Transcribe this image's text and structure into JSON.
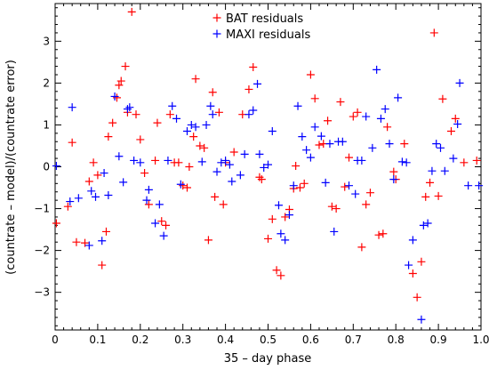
{
  "chart_data": {
    "type": "scatter",
    "title": "",
    "xlabel": "35 – day phase",
    "ylabel": "(countrate – model)/(countrate error)",
    "xlim": [
      0,
      1.0
    ],
    "ylim": [
      -3.9,
      3.9
    ],
    "xticks": [
      0,
      0.1,
      0.2,
      0.3,
      0.4,
      0.5,
      0.6,
      0.7,
      0.8,
      0.9,
      1.0
    ],
    "xtick_labels": [
      "0",
      "0.1",
      "0.2",
      "0.3",
      "0.4",
      "0.5",
      "0.6",
      "0.7",
      "0.8",
      "0.9",
      "1.0"
    ],
    "yticks": [
      -3,
      -2,
      -1,
      0,
      1,
      2,
      3
    ],
    "ytick_labels": [
      "−3",
      "−2",
      "−1",
      "0",
      "1",
      "2",
      "3"
    ],
    "legend_position": "top-right",
    "marker": "plus",
    "series": [
      {
        "name": "BAT residuals",
        "color": "#ff0000",
        "points": [
          [
            0.003,
            -1.35
          ],
          [
            0.03,
            -0.95
          ],
          [
            0.04,
            0.58
          ],
          [
            0.05,
            -1.8
          ],
          [
            0.07,
            -1.82
          ],
          [
            0.08,
            -0.35
          ],
          [
            0.09,
            0.1
          ],
          [
            0.1,
            -0.2
          ],
          [
            0.11,
            -2.35
          ],
          [
            0.12,
            -1.55
          ],
          [
            0.125,
            0.72
          ],
          [
            0.135,
            1.05
          ],
          [
            0.145,
            1.65
          ],
          [
            0.15,
            1.95
          ],
          [
            0.155,
            2.05
          ],
          [
            0.165,
            2.4
          ],
          [
            0.17,
            1.3
          ],
          [
            0.18,
            3.7
          ],
          [
            0.19,
            1.25
          ],
          [
            0.2,
            0.65
          ],
          [
            0.21,
            -0.15
          ],
          [
            0.22,
            -0.9
          ],
          [
            0.235,
            0.15
          ],
          [
            0.24,
            1.05
          ],
          [
            0.25,
            -1.3
          ],
          [
            0.26,
            -1.4
          ],
          [
            0.27,
            1.25
          ],
          [
            0.28,
            0.1
          ],
          [
            0.29,
            0.1
          ],
          [
            0.3,
            -0.45
          ],
          [
            0.31,
            -0.5
          ],
          [
            0.315,
            0.0
          ],
          [
            0.325,
            0.72
          ],
          [
            0.33,
            2.1
          ],
          [
            0.34,
            0.5
          ],
          [
            0.35,
            0.45
          ],
          [
            0.36,
            -1.75
          ],
          [
            0.37,
            1.78
          ],
          [
            0.375,
            -0.72
          ],
          [
            0.385,
            1.3
          ],
          [
            0.395,
            -0.9
          ],
          [
            0.4,
            0.1
          ],
          [
            0.42,
            0.35
          ],
          [
            0.44,
            1.25
          ],
          [
            0.455,
            1.85
          ],
          [
            0.465,
            2.38
          ],
          [
            0.48,
            -0.25
          ],
          [
            0.485,
            -0.3
          ],
          [
            0.5,
            -1.72
          ],
          [
            0.51,
            -1.25
          ],
          [
            0.52,
            -2.47
          ],
          [
            0.53,
            -2.6
          ],
          [
            0.54,
            -1.2
          ],
          [
            0.55,
            -1.02
          ],
          [
            0.56,
            -0.52
          ],
          [
            0.565,
            0.02
          ],
          [
            0.575,
            -0.5
          ],
          [
            0.585,
            -0.4
          ],
          [
            0.6,
            2.2
          ],
          [
            0.61,
            1.63
          ],
          [
            0.62,
            0.52
          ],
          [
            0.63,
            0.55
          ],
          [
            0.64,
            1.1
          ],
          [
            0.65,
            -0.95
          ],
          [
            0.66,
            -1.0
          ],
          [
            0.67,
            1.55
          ],
          [
            0.68,
            -0.48
          ],
          [
            0.69,
            0.22
          ],
          [
            0.7,
            1.2
          ],
          [
            0.71,
            1.3
          ],
          [
            0.72,
            -1.92
          ],
          [
            0.73,
            -0.9
          ],
          [
            0.74,
            -0.62
          ],
          [
            0.76,
            -1.63
          ],
          [
            0.77,
            -1.6
          ],
          [
            0.78,
            0.95
          ],
          [
            0.795,
            -0.12
          ],
          [
            0.8,
            -0.3
          ],
          [
            0.82,
            0.55
          ],
          [
            0.84,
            -2.55
          ],
          [
            0.85,
            -3.12
          ],
          [
            0.86,
            -2.27
          ],
          [
            0.87,
            -0.72
          ],
          [
            0.88,
            -0.38
          ],
          [
            0.89,
            3.2
          ],
          [
            0.9,
            -0.7
          ],
          [
            0.91,
            1.62
          ],
          [
            0.93,
            0.85
          ],
          [
            0.94,
            1.15
          ],
          [
            0.96,
            0.1
          ],
          [
            0.99,
            0.15
          ]
        ]
      },
      {
        "name": "MAXI residuals",
        "color": "#0000ff",
        "points": [
          [
            0.003,
            0.02
          ],
          [
            0.035,
            -0.83
          ],
          [
            0.04,
            1.42
          ],
          [
            0.055,
            -0.75
          ],
          [
            0.08,
            -1.88
          ],
          [
            0.085,
            -0.58
          ],
          [
            0.095,
            -0.72
          ],
          [
            0.11,
            -1.77
          ],
          [
            0.115,
            -0.15
          ],
          [
            0.125,
            -0.68
          ],
          [
            0.14,
            1.68
          ],
          [
            0.15,
            0.25
          ],
          [
            0.16,
            -0.37
          ],
          [
            0.17,
            1.38
          ],
          [
            0.175,
            1.42
          ],
          [
            0.185,
            0.15
          ],
          [
            0.2,
            0.1
          ],
          [
            0.215,
            -0.8
          ],
          [
            0.22,
            -0.55
          ],
          [
            0.235,
            -1.35
          ],
          [
            0.245,
            -0.9
          ],
          [
            0.255,
            -1.65
          ],
          [
            0.265,
            0.15
          ],
          [
            0.275,
            1.45
          ],
          [
            0.285,
            1.15
          ],
          [
            0.295,
            -0.42
          ],
          [
            0.31,
            0.85
          ],
          [
            0.32,
            1.0
          ],
          [
            0.33,
            0.95
          ],
          [
            0.345,
            0.12
          ],
          [
            0.355,
            1.0
          ],
          [
            0.365,
            1.45
          ],
          [
            0.37,
            1.25
          ],
          [
            0.38,
            -0.12
          ],
          [
            0.39,
            0.1
          ],
          [
            0.4,
            0.15
          ],
          [
            0.41,
            0.05
          ],
          [
            0.415,
            -0.35
          ],
          [
            0.435,
            -0.2
          ],
          [
            0.445,
            0.3
          ],
          [
            0.455,
            1.25
          ],
          [
            0.465,
            1.35
          ],
          [
            0.475,
            1.98
          ],
          [
            0.48,
            0.3
          ],
          [
            0.49,
            -0.02
          ],
          [
            0.5,
            0.05
          ],
          [
            0.51,
            0.85
          ],
          [
            0.525,
            -0.92
          ],
          [
            0.53,
            -1.6
          ],
          [
            0.54,
            -1.75
          ],
          [
            0.55,
            -1.15
          ],
          [
            0.56,
            -0.45
          ],
          [
            0.57,
            1.45
          ],
          [
            0.58,
            0.72
          ],
          [
            0.59,
            0.4
          ],
          [
            0.6,
            0.22
          ],
          [
            0.61,
            0.95
          ],
          [
            0.625,
            0.73
          ],
          [
            0.635,
            -0.38
          ],
          [
            0.645,
            0.55
          ],
          [
            0.655,
            -1.55
          ],
          [
            0.665,
            0.6
          ],
          [
            0.675,
            0.6
          ],
          [
            0.69,
            -0.45
          ],
          [
            0.705,
            -0.65
          ],
          [
            0.71,
            0.15
          ],
          [
            0.72,
            0.15
          ],
          [
            0.73,
            1.2
          ],
          [
            0.745,
            0.45
          ],
          [
            0.755,
            2.32
          ],
          [
            0.765,
            1.15
          ],
          [
            0.775,
            1.38
          ],
          [
            0.785,
            0.55
          ],
          [
            0.795,
            -0.3
          ],
          [
            0.805,
            1.65
          ],
          [
            0.815,
            0.12
          ],
          [
            0.825,
            0.1
          ],
          [
            0.83,
            -2.35
          ],
          [
            0.84,
            -1.75
          ],
          [
            0.86,
            -3.65
          ],
          [
            0.865,
            -1.4
          ],
          [
            0.875,
            -1.35
          ],
          [
            0.885,
            -0.1
          ],
          [
            0.895,
            0.55
          ],
          [
            0.905,
            0.45
          ],
          [
            0.915,
            -0.1
          ],
          [
            0.935,
            0.2
          ],
          [
            0.945,
            1.02
          ],
          [
            0.95,
            2.0
          ],
          [
            0.97,
            -0.45
          ],
          [
            0.995,
            -0.45
          ]
        ]
      }
    ]
  }
}
